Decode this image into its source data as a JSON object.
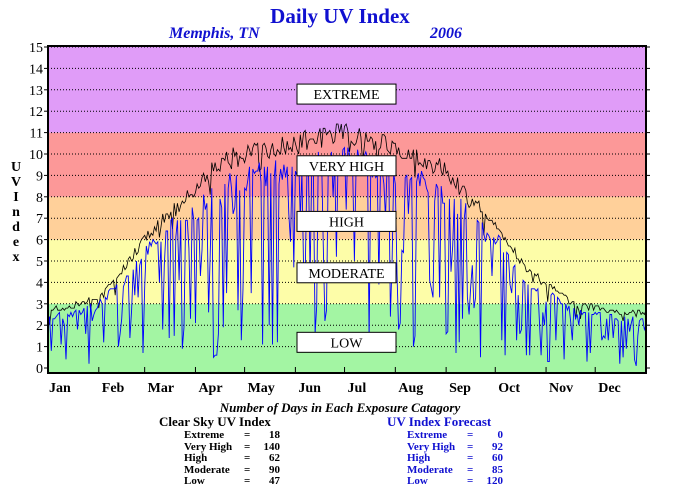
{
  "title": "Daily UV Index",
  "location": "Memphis, TN",
  "year": "2006",
  "chart_data": {
    "type": "line",
    "xlabel": "",
    "ylabel": "UV Index",
    "ylim": [
      0,
      15
    ],
    "yticks": [
      0,
      1,
      2,
      3,
      4,
      5,
      6,
      7,
      8,
      9,
      10,
      11,
      12,
      13,
      14,
      15
    ],
    "xlim": [
      1,
      366
    ],
    "months": [
      {
        "label": "Jan",
        "day": 1
      },
      {
        "label": "Feb",
        "day": 32
      },
      {
        "label": "Mar",
        "day": 60
      },
      {
        "label": "Apr",
        "day": 91
      },
      {
        "label": "May",
        "day": 121
      },
      {
        "label": "Jun",
        "day": 152
      },
      {
        "label": "Jul",
        "day": 182
      },
      {
        "label": "Aug",
        "day": 213
      },
      {
        "label": "Sep",
        "day": 244
      },
      {
        "label": "Oct",
        "day": 274
      },
      {
        "label": "Nov",
        "day": 305
      },
      {
        "label": "Dec",
        "day": 335
      }
    ],
    "grid": true,
    "bands": [
      {
        "name": "LOW",
        "from": 0,
        "to": 3,
        "color": "#a3f5a3",
        "label_at": 1.2
      },
      {
        "name": "MODERATE",
        "from": 3,
        "to": 6,
        "color": "#fdfda8",
        "label_at": 4.45
      },
      {
        "name": "HIGH",
        "from": 6,
        "to": 8,
        "color": "#ffd09a",
        "label_at": 6.85
      },
      {
        "name": "VERY HIGH",
        "from": 8,
        "to": 11,
        "color": "#fc9898",
        "label_at": 9.45
      },
      {
        "name": "EXTREME",
        "from": 11,
        "to": 15,
        "color": "#e09cf8",
        "label_at": 12.8
      }
    ],
    "series": [
      {
        "name": "Clear Sky UV Index",
        "color": "#000000",
        "values": []
      },
      {
        "name": "UV Index Forecast",
        "color": "#0000ff",
        "values": []
      }
    ],
    "series_note": "values are generated per day by the drawing script from the envelope below",
    "clear_sky_envelope": [
      [
        1,
        2.8
      ],
      [
        15,
        2.9
      ],
      [
        32,
        3.5
      ],
      [
        45,
        4.5
      ],
      [
        60,
        6.2
      ],
      [
        75,
        7.5
      ],
      [
        91,
        8.5
      ],
      [
        105,
        9.8
      ],
      [
        121,
        10.3
      ],
      [
        135,
        10.5
      ],
      [
        152,
        10.8
      ],
      [
        166,
        11.0
      ],
      [
        175,
        11.3
      ],
      [
        182,
        11.3
      ],
      [
        195,
        11.1
      ],
      [
        213,
        10.5
      ],
      [
        225,
        10.2
      ],
      [
        244,
        9.5
      ],
      [
        260,
        8.0
      ],
      [
        274,
        7.0
      ],
      [
        290,
        5.0
      ],
      [
        305,
        4.0
      ],
      [
        320,
        3.2
      ],
      [
        335,
        2.9
      ],
      [
        350,
        2.6
      ],
      [
        366,
        2.7
      ]
    ]
  },
  "counts": {
    "heading": "Number of Days in Each Exposure Catagory",
    "clear_sky": {
      "title": "Clear Sky UV Index",
      "rows": [
        {
          "label": "Extreme",
          "value": "18"
        },
        {
          "label": "Very High",
          "value": "140"
        },
        {
          "label": "High",
          "value": "62"
        },
        {
          "label": "Moderate",
          "value": "90"
        },
        {
          "label": "Low",
          "value": "47"
        }
      ]
    },
    "forecast": {
      "title": "UV Index Forecast",
      "rows": [
        {
          "label": "Extreme",
          "value": "0"
        },
        {
          "label": "Very High",
          "value": "92"
        },
        {
          "label": "High",
          "value": "60"
        },
        {
          "label": "Moderate",
          "value": "85"
        },
        {
          "label": "Low",
          "value": "120"
        }
      ]
    }
  },
  "colors": {
    "title": "#1010d0",
    "forecast": "#0000ff",
    "clear": "#000000"
  }
}
